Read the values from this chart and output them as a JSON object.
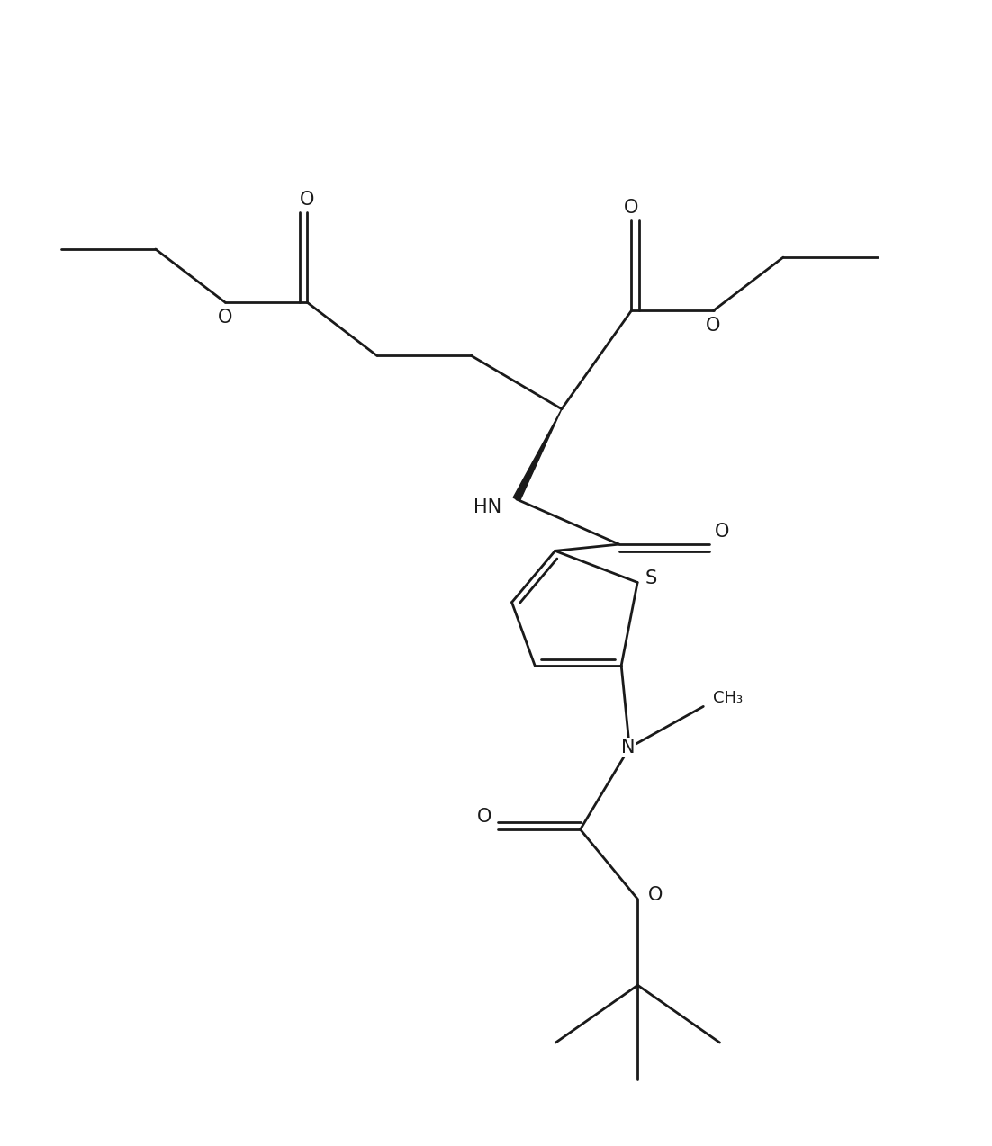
{
  "background_color": "#ffffff",
  "line_color": "#1a1a1a",
  "line_width": 2.0,
  "font_size": 15,
  "figsize": [
    11.02,
    12.74
  ],
  "dpi": 100,
  "xlim": [
    -1.0,
    11.0
  ],
  "ylim": [
    -0.5,
    12.5
  ]
}
